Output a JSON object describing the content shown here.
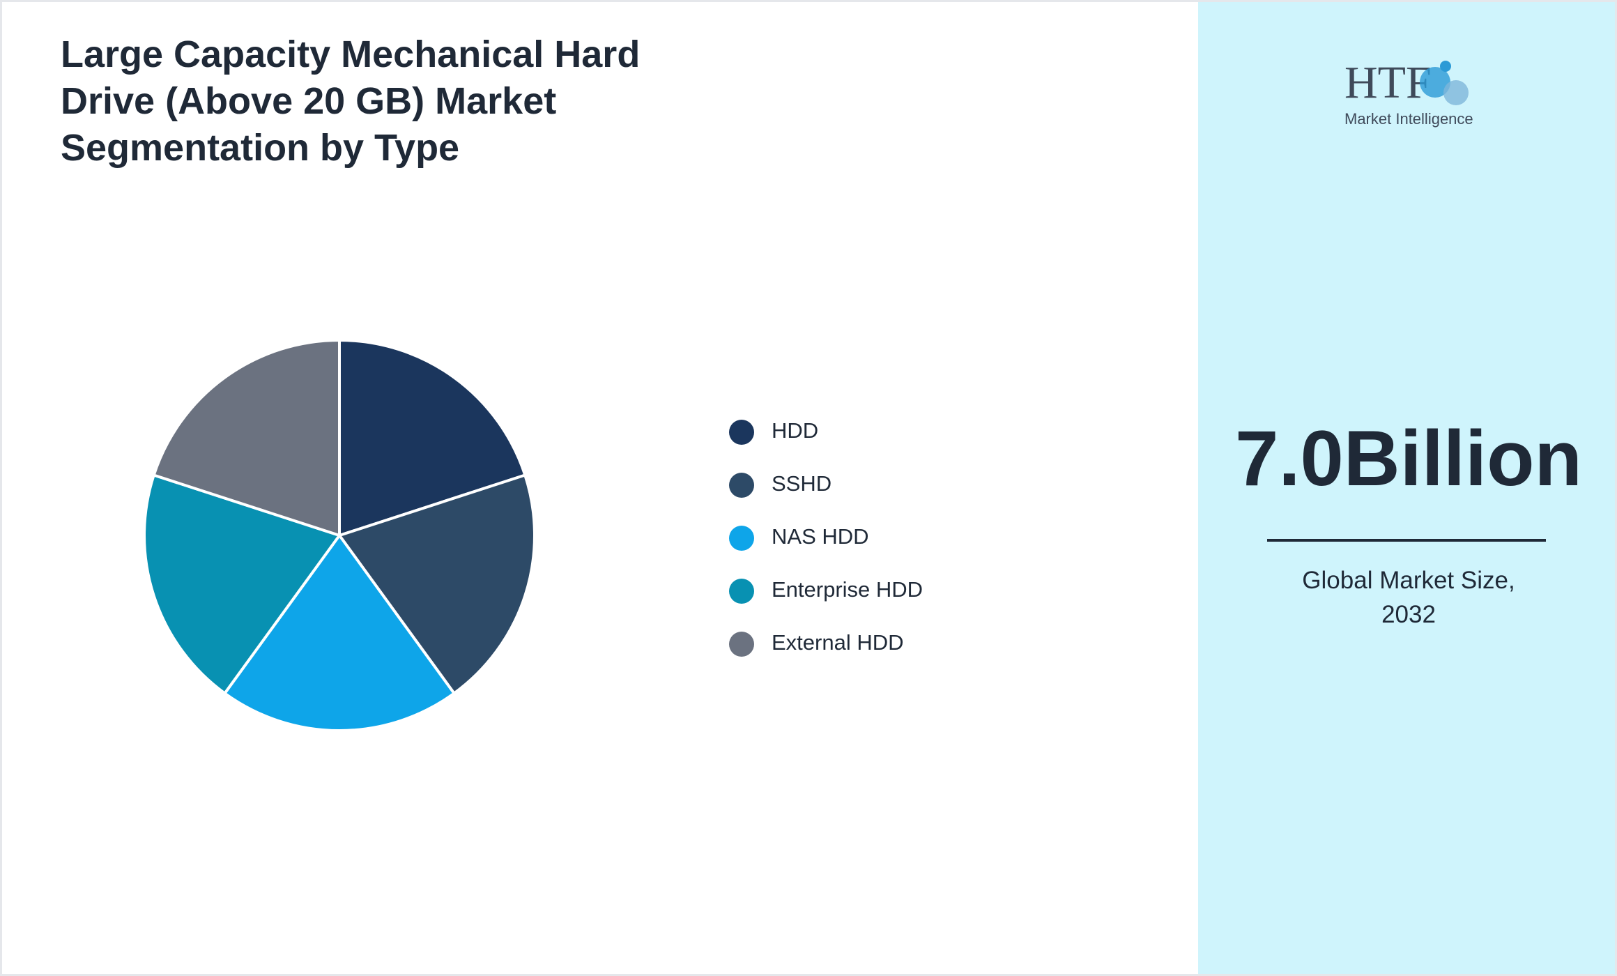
{
  "chart_data": {
    "type": "pie",
    "title": "Large Capacity Mechanical Hard Drive (Above 20 GB) Market Segmentation by Type",
    "categories": [
      "HDD",
      "SSHD",
      "NAS HDD",
      "Enterprise HDD",
      "External HDD"
    ],
    "values": [
      20,
      20,
      20,
      20,
      20
    ],
    "colors": [
      "#1b365d",
      "#2d4a67",
      "#0ea5e9",
      "#0891b2",
      "#6b7280"
    ]
  },
  "logo": {
    "mark": "HTF",
    "name": "Market Intelligence"
  },
  "market_size": {
    "value": "7.0Billion",
    "label": "Global Market Size, 2032"
  }
}
